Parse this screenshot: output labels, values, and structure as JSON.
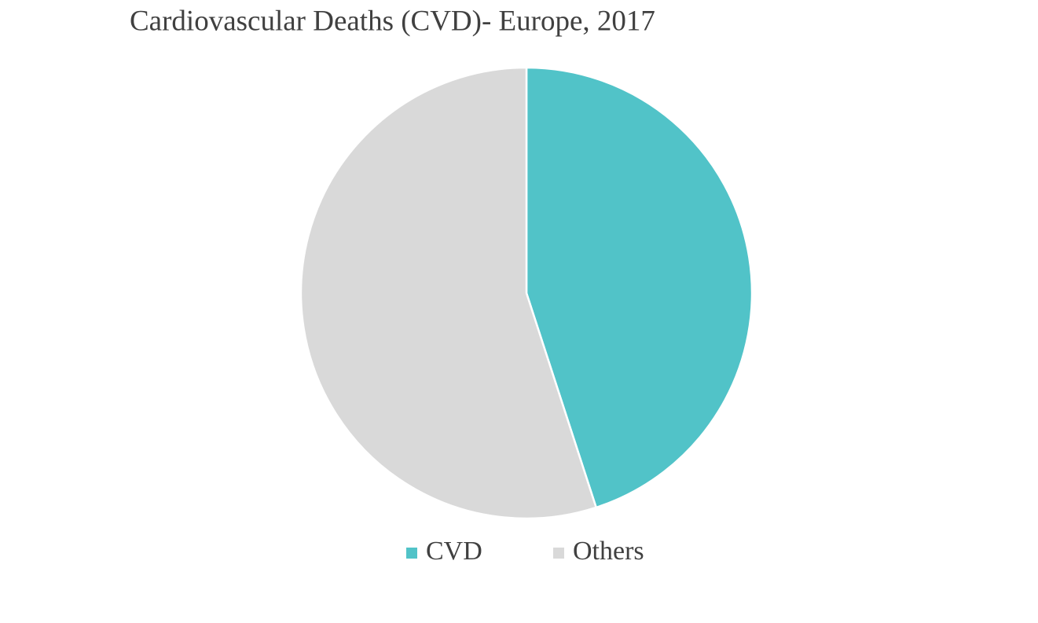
{
  "chart_data": {
    "type": "pie",
    "title": "Cardiovascular Deaths (CVD)- Europe, 2017",
    "categories": [
      "CVD",
      "Others"
    ],
    "values": [
      45,
      55
    ],
    "colors": [
      "#51c3c8",
      "#d9d9d9"
    ],
    "legend": "bottom"
  }
}
